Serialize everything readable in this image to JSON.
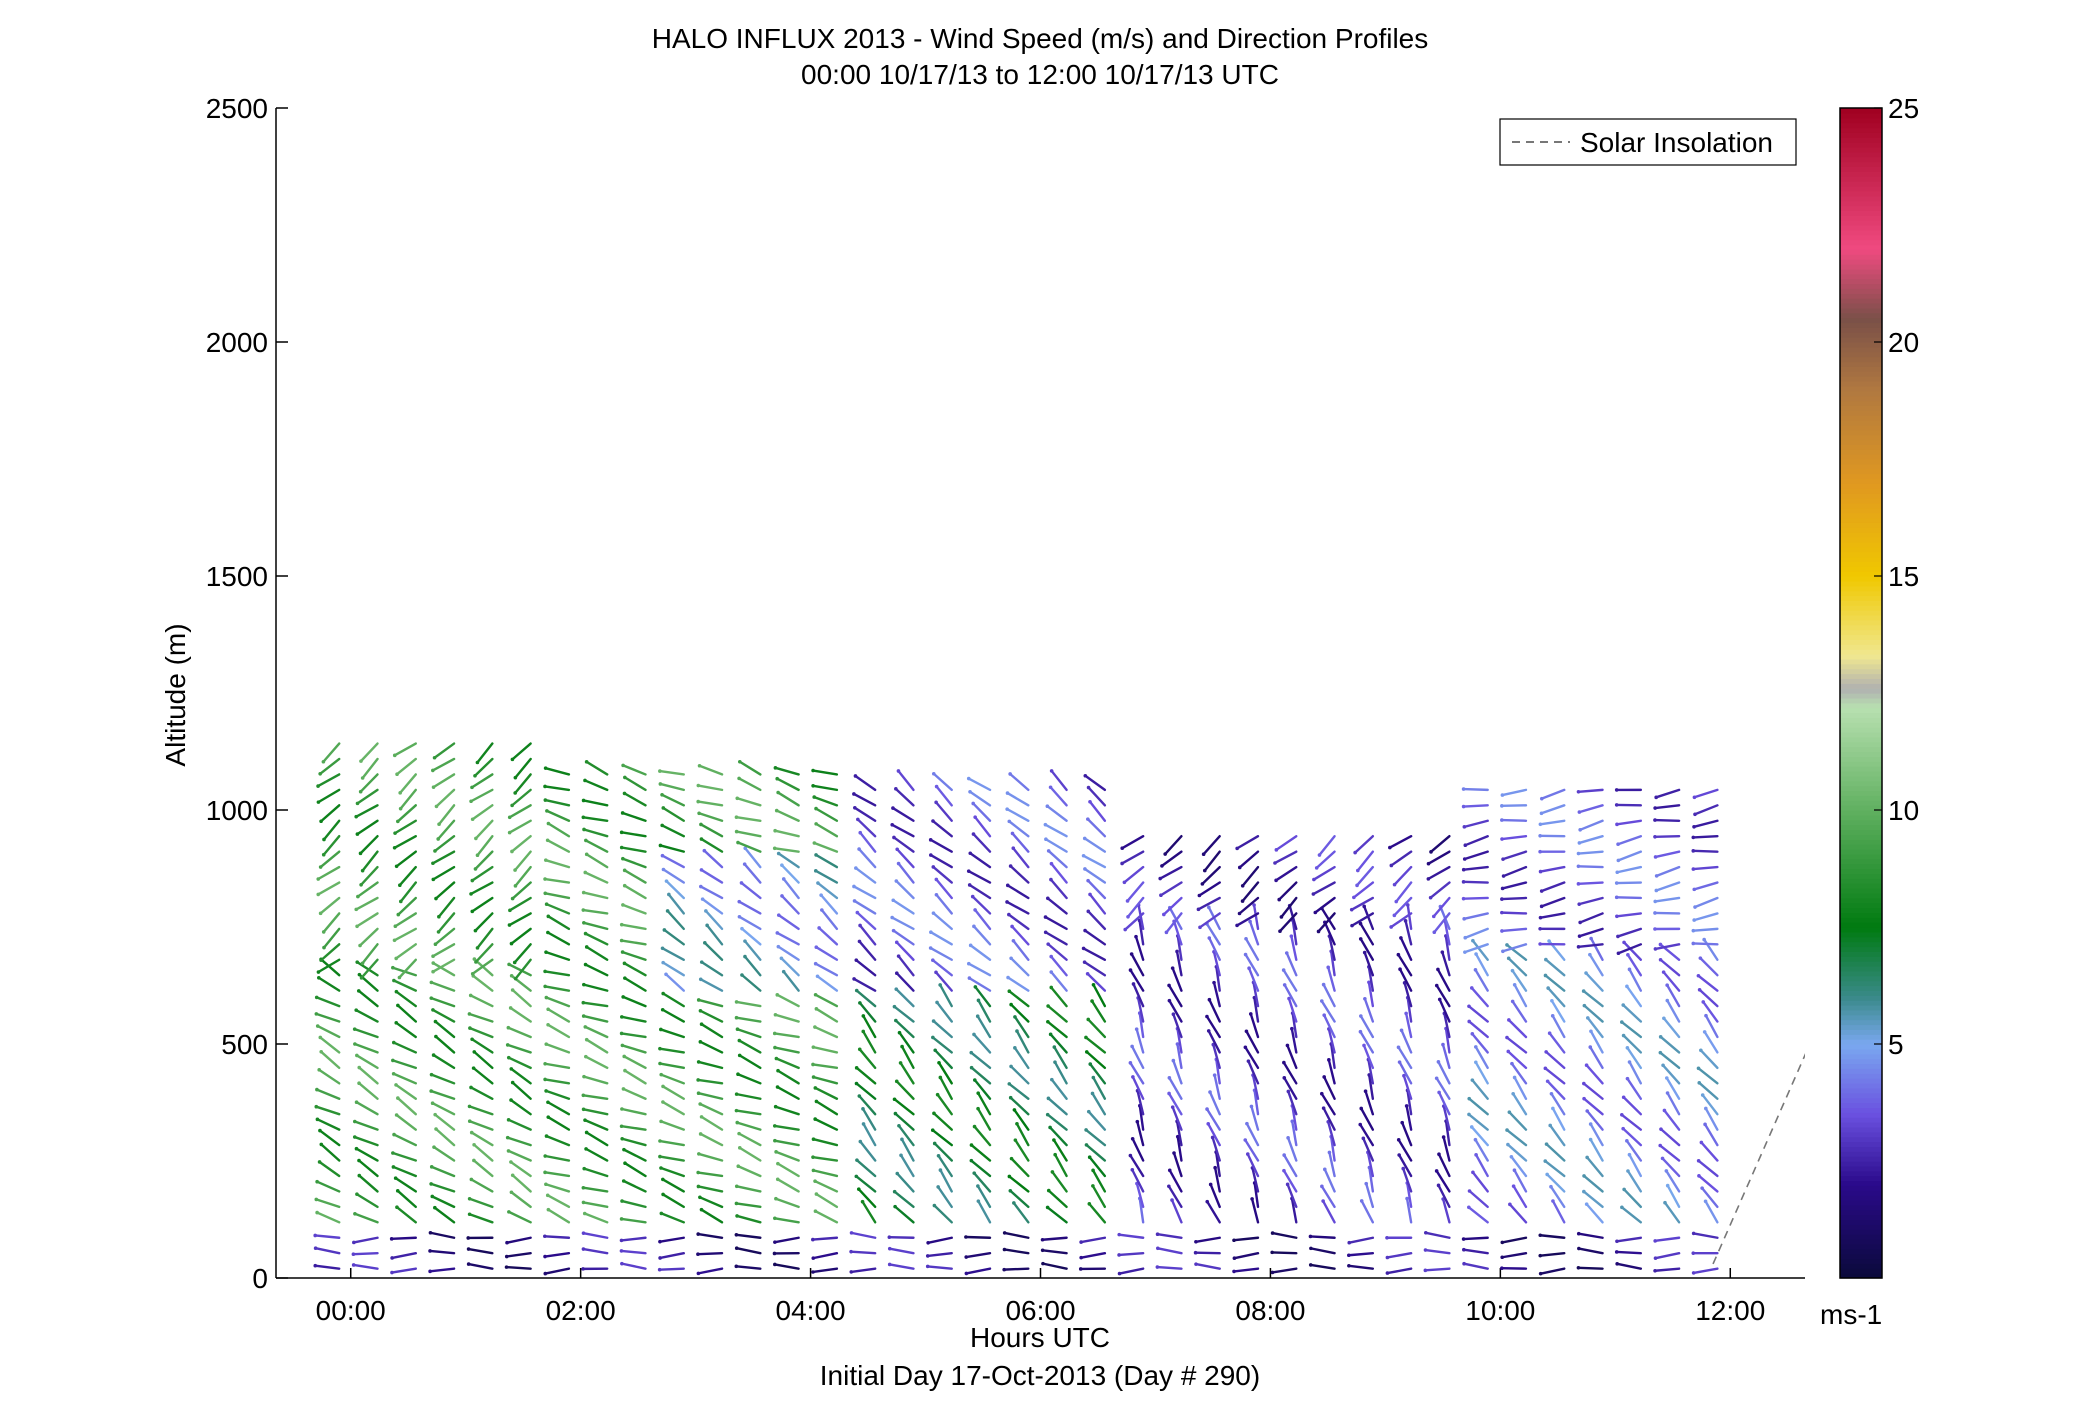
{
  "chart_data": {
    "type": "wind-barb-profile",
    "title": "HALO INFLUX 2013 - Wind Speed (m/s) and Direction Profiles",
    "subtitle": "00:00 10/17/13 to 12:00 10/17/13  UTC",
    "xlabel": "Hours UTC",
    "xlabel2": "Initial Day 17-Oct-2013 (Day # 290)",
    "ylabel": "Altitude (m)",
    "xlim": [
      -0.65,
      12.65
    ],
    "ylim": [
      0,
      2500
    ],
    "xticks": [
      {
        "value": 0,
        "label": "00:00"
      },
      {
        "value": 2,
        "label": "02:00"
      },
      {
        "value": 4,
        "label": "04:00"
      },
      {
        "value": 6,
        "label": "06:00"
      },
      {
        "value": 8,
        "label": "08:00"
      },
      {
        "value": 10,
        "label": "10:00"
      },
      {
        "value": 12,
        "label": "12:00"
      }
    ],
    "yticks": [
      {
        "value": 0,
        "label": "0"
      },
      {
        "value": 500,
        "label": "500"
      },
      {
        "value": 1000,
        "label": "1000"
      },
      {
        "value": 1500,
        "label": "1500"
      },
      {
        "value": 2000,
        "label": "2000"
      },
      {
        "value": 2500,
        "label": "2500"
      }
    ],
    "legend": {
      "label": "Solar Insolation",
      "position": "top-right",
      "style": "dashed",
      "color": "#777777"
    },
    "colorbar": {
      "range": [
        0,
        25
      ],
      "unit": "ms-1",
      "ticks": [
        {
          "value": 5,
          "label": "5"
        },
        {
          "value": 10,
          "label": "10"
        },
        {
          "value": 15,
          "label": "15"
        },
        {
          "value": 20,
          "label": "20"
        },
        {
          "value": 25,
          "label": "25"
        }
      ],
      "stops": [
        {
          "v": 0,
          "c": "#0a0a3a"
        },
        {
          "v": 2,
          "c": "#2a0a8a"
        },
        {
          "v": 3.5,
          "c": "#6a50e0"
        },
        {
          "v": 5,
          "c": "#7aa8f0"
        },
        {
          "v": 6,
          "c": "#3a8a8a"
        },
        {
          "v": 7.5,
          "c": "#007a10"
        },
        {
          "v": 10,
          "c": "#60b060"
        },
        {
          "v": 12.2,
          "c": "#b8e0b0"
        },
        {
          "v": 12.6,
          "c": "#b0b0b0"
        },
        {
          "v": 13.3,
          "c": "#f0e890"
        },
        {
          "v": 15,
          "c": "#f0c800"
        },
        {
          "v": 17,
          "c": "#e09820"
        },
        {
          "v": 19,
          "c": "#b07840"
        },
        {
          "v": 20.5,
          "c": "#7a5048"
        },
        {
          "v": 22,
          "c": "#f04a80"
        },
        {
          "v": 25,
          "c": "#a00020"
        }
      ]
    },
    "solar_insolation": {
      "x": [
        11.85,
        12.8
      ],
      "y": [
        30,
        560
      ]
    },
    "barb_grid": {
      "x_start": -0.1,
      "x_step": 0.333,
      "x_count": 37,
      "alt_step": 33,
      "barb_length_m": 0.21
    },
    "wind_regimes": [
      {
        "x_from": -0.1,
        "x_to": 1.8,
        "alt_from": 100,
        "alt_to": 650,
        "speed": 9,
        "dir_deg": 300
      },
      {
        "x_from": -0.1,
        "x_to": 1.8,
        "alt_from": 650,
        "alt_to": 1160,
        "speed": 9,
        "dir_deg": 230
      },
      {
        "x_from": 1.8,
        "x_to": 4.4,
        "alt_from": 100,
        "alt_to": 1100,
        "speed": 9,
        "dir_deg": 290
      },
      {
        "x_from": 2.8,
        "x_to": 4.4,
        "alt_from": 600,
        "alt_to": 900,
        "speed": 5,
        "dir_deg": 310
      },
      {
        "x_from": 4.4,
        "x_to": 6.8,
        "alt_from": 100,
        "alt_to": 600,
        "speed": 7,
        "dir_deg": 320
      },
      {
        "x_from": 4.4,
        "x_to": 6.8,
        "alt_from": 600,
        "alt_to": 1060,
        "speed": 3.5,
        "dir_deg": 310
      },
      {
        "x_from": 6.8,
        "x_to": 9.6,
        "alt_from": 100,
        "alt_to": 760,
        "speed": 3,
        "dir_deg": 340
      },
      {
        "x_from": 6.8,
        "x_to": 9.6,
        "alt_from": 760,
        "alt_to": 960,
        "speed": 2.5,
        "dir_deg": 230
      },
      {
        "x_from": 9.6,
        "x_to": 11.95,
        "alt_from": 100,
        "alt_to": 700,
        "speed": 4.5,
        "dir_deg": 320
      },
      {
        "x_from": 9.6,
        "x_to": 11.95,
        "alt_from": 700,
        "alt_to": 1070,
        "speed": 3.5,
        "dir_deg": 260
      },
      {
        "x_from": -0.1,
        "x_to": 11.95,
        "alt_from": 0,
        "alt_to": 100,
        "speed": 2,
        "dir_deg": 270
      }
    ]
  }
}
